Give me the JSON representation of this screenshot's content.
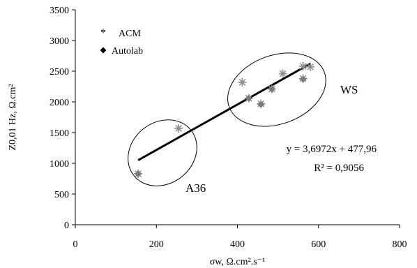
{
  "chart_data": {
    "type": "scatter",
    "xlabel": "σw, Ω.cm².s⁻¹",
    "ylabel": "Z0,01 Hz, Ω.cm²",
    "xlim": [
      0,
      800
    ],
    "ylim": [
      0,
      3500
    ],
    "x_ticks": [
      "0",
      "200",
      "400",
      "600",
      "800"
    ],
    "y_ticks": [
      "0",
      "500",
      "1000",
      "1500",
      "2000",
      "2500",
      "3000",
      "3500"
    ],
    "grid": false,
    "legend_position": "top-left",
    "series": [
      {
        "name": "ACM",
        "marker": "asterisk",
        "color": "#8c8c8c",
        "points": [
          {
            "x": 155,
            "y": 830
          },
          {
            "x": 255,
            "y": 1570
          },
          {
            "x": 412,
            "y": 2320
          },
          {
            "x": 428,
            "y": 2060
          },
          {
            "x": 458,
            "y": 1970
          },
          {
            "x": 485,
            "y": 2210
          },
          {
            "x": 512,
            "y": 2460
          },
          {
            "x": 562,
            "y": 2580
          },
          {
            "x": 562,
            "y": 2380
          },
          {
            "x": 580,
            "y": 2570
          }
        ]
      },
      {
        "name": "Autolab",
        "marker": "diamond",
        "color": "#7a7a7a",
        "points": [
          {
            "x": 155,
            "y": 830
          },
          {
            "x": 428,
            "y": 2060
          },
          {
            "x": 458,
            "y": 1960
          },
          {
            "x": 485,
            "y": 2210
          },
          {
            "x": 562,
            "y": 2370
          }
        ]
      }
    ],
    "trendline": {
      "slope": 3.6972,
      "intercept": 477.96,
      "x_range": [
        155,
        580
      ],
      "equation": "y = 3,6972x + 477,96",
      "r2": "R² = 0,9056"
    },
    "groups": [
      {
        "label": "A36",
        "cx": 215,
        "cy": 1170,
        "rx": 90,
        "ry": 500,
        "angle_deg": -38
      },
      {
        "label": "WS",
        "cx": 497,
        "cy": 2200,
        "rx": 125,
        "ry": 560,
        "angle_deg": -20
      }
    ]
  }
}
